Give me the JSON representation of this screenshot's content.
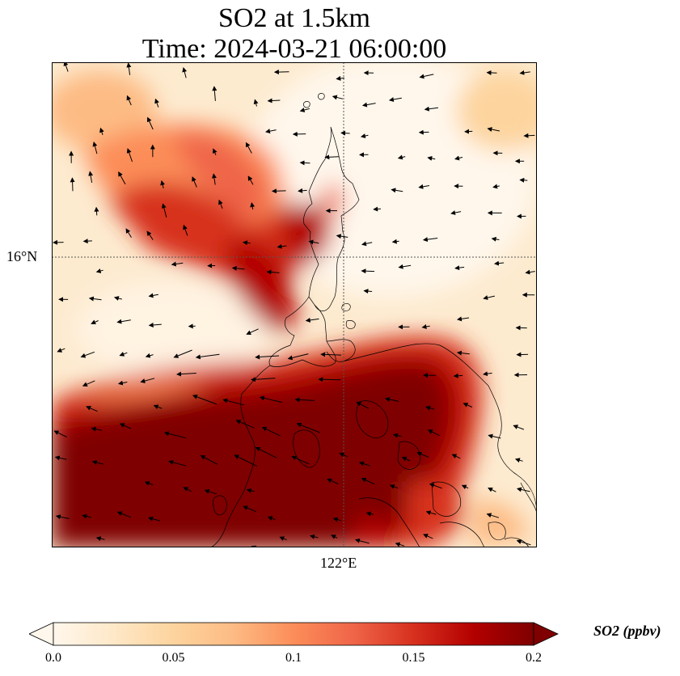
{
  "title_line1": "SO2 at 1.5km",
  "title_line2": "Time: 2024-03-21 06:00:00",
  "map": {
    "lat_gridline": "16°N",
    "lon_gridline": "122°E"
  },
  "colorbar": {
    "label": "SO2 (ppbv)",
    "ticks": [
      "0.0",
      "0.05",
      "0.1",
      "0.15",
      "0.2"
    ],
    "range": [
      0.0,
      0.2
    ],
    "extend": "both",
    "colormap": "OrRd",
    "colors": [
      "#fff7ec",
      "#fee8c8",
      "#fdd49e",
      "#fdbb84",
      "#fc8d59",
      "#ef6548",
      "#d7301f",
      "#b30000",
      "#7f0000"
    ]
  },
  "overlays": [
    "coastline",
    "wind-vectors"
  ]
}
